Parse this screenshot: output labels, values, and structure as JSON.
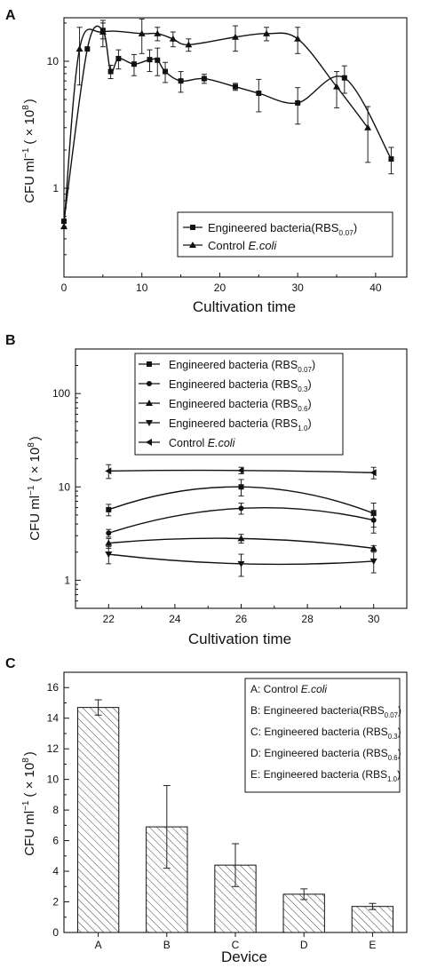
{
  "panels": [
    {
      "id": "A",
      "panel_label": "A",
      "xlabel": "Cultivation time",
      "ylabel_main": "CFU ml",
      "ylabel_sup": "−1",
      "ylabel_paren": "( × 10",
      "ylabel_exp": "8",
      "ylabel_close": ")",
      "legend": [
        {
          "marker": "square",
          "text": "Engineered bacteria(RBS",
          "sub": "0.07",
          "tail": ")",
          "italic": false
        },
        {
          "marker": "triangle-up",
          "text": "Control ",
          "italic_text": "E.coli",
          "sub": "",
          "tail": "",
          "italic": true
        }
      ]
    },
    {
      "id": "B",
      "panel_label": "B",
      "xlabel": "Cultivation time",
      "ylabel_main": "CFU ml",
      "ylabel_sup": "−1",
      "ylabel_paren": "( × 10",
      "ylabel_exp": "8",
      "ylabel_close": ")",
      "legend": [
        {
          "marker": "square",
          "text": "Engineered bacteria (RBS",
          "sub": "0.07",
          "tail": ")",
          "italic": false
        },
        {
          "marker": "circle",
          "text": "Engineered bacteria (RBS",
          "sub": "0.3",
          "tail": ")",
          "italic": false
        },
        {
          "marker": "triangle-up",
          "text": "Engineered bacteria (RBS",
          "sub": "0.6",
          "tail": ")",
          "italic": false
        },
        {
          "marker": "triangle-down",
          "text": "Engineered bacteria (RBS",
          "sub": "1.0",
          "tail": ")",
          "italic": false
        },
        {
          "marker": "triangle-left",
          "text": "Control ",
          "italic_text": "E.coli",
          "sub": "",
          "tail": "",
          "italic": true
        }
      ]
    },
    {
      "id": "C",
      "panel_label": "C",
      "xlabel": "Device",
      "ylabel_main": "CFU ml",
      "ylabel_sup": "−1",
      "ylabel_paren": "( × 10",
      "ylabel_exp": "8",
      "ylabel_close": ")",
      "legend": [
        {
          "prefix": "A: ",
          "text": "Control ",
          "italic_text": "E.coli",
          "sub": "",
          "tail": "",
          "italic": true
        },
        {
          "prefix": "B: ",
          "text": "Engineered bacteria(RBS",
          "sub": "0.07",
          "tail": ")",
          "italic": false
        },
        {
          "prefix": "C: ",
          "text": "Engineered bacteria (RBS",
          "sub": "0.3",
          "tail": ")",
          "italic": false
        },
        {
          "prefix": "D: ",
          "text": "Engineered bacteria (RBS",
          "sub": "0.6",
          "tail": ")",
          "italic": false
        },
        {
          "prefix": "E: ",
          "text": "Engineered bacteria (RBS",
          "sub": "1.0",
          "tail": ")",
          "italic": false
        }
      ]
    }
  ],
  "chart_data": [
    {
      "type": "line",
      "panel": "A",
      "xlabel": "Cultivation time",
      "ylabel": "CFU ml−1 ( × 10^8)",
      "xlim": [
        0,
        44
      ],
      "ylim": [
        0.2,
        22
      ],
      "yscale": "log",
      "xticks": [
        0,
        10,
        20,
        30,
        40
      ],
      "yticks": [
        1,
        10
      ],
      "legend_position": "bottom-right",
      "series": [
        {
          "name": "Engineered bacteria(RBS0.07)",
          "marker": "square",
          "x": [
            0,
            3,
            5,
            6,
            7,
            9,
            11,
            12,
            13,
            15,
            18,
            22,
            25,
            30,
            36,
            42
          ],
          "y": [
            0.55,
            12.5,
            17.5,
            8.3,
            10.5,
            9.5,
            10.3,
            10.2,
            8.3,
            7.0,
            7.3,
            6.3,
            5.6,
            4.7,
            7.4,
            1.7
          ],
          "err": [
            0,
            0,
            2.5,
            1.0,
            1.8,
            1.8,
            2.0,
            2.5,
            1.5,
            1.3,
            0.6,
            0.4,
            1.6,
            1.5,
            1.8,
            0.4
          ]
        },
        {
          "name": "Control E.coli",
          "marker": "triangle-up",
          "x": [
            0,
            2,
            5,
            10,
            12,
            14,
            16,
            22,
            26,
            30,
            35,
            39
          ],
          "y": [
            0.5,
            12.5,
            17,
            16.5,
            16.5,
            15,
            13.5,
            15.5,
            16.5,
            15,
            6.3,
            3.0
          ],
          "err": [
            0,
            6,
            4,
            5,
            2,
            2,
            1.5,
            3.5,
            2,
            3.5,
            2,
            1.4
          ]
        }
      ]
    },
    {
      "type": "line",
      "panel": "B",
      "xlabel": "Cultivation time",
      "ylabel": "CFU ml−1 ( × 10^8)",
      "xlim": [
        21,
        31
      ],
      "ylim": [
        0.5,
        300
      ],
      "yscale": "log",
      "xticks": [
        22,
        24,
        26,
        28,
        30
      ],
      "yticks": [
        1,
        10,
        100
      ],
      "legend_position": "top-center",
      "series": [
        {
          "name": "Engineered bacteria (RBS0.07)",
          "marker": "square",
          "x": [
            22,
            26,
            30
          ],
          "y": [
            5.7,
            10.0,
            5.2
          ],
          "err": [
            0.8,
            2.0,
            1.5
          ]
        },
        {
          "name": "Engineered bacteria (RBS0.3)",
          "marker": "circle",
          "x": [
            22,
            26,
            30
          ],
          "y": [
            3.2,
            5.9,
            4.4
          ],
          "err": [
            0.3,
            0.8,
            1.2
          ]
        },
        {
          "name": "Engineered bacteria (RBS0.6)",
          "marker": "triangle-up",
          "x": [
            22,
            26,
            30
          ],
          "y": [
            2.5,
            2.8,
            2.2
          ],
          "err": [
            0.3,
            0.3,
            0.15
          ]
        },
        {
          "name": "Engineered bacteria (RBS1.0)",
          "marker": "triangle-down",
          "x": [
            22,
            26,
            30
          ],
          "y": [
            1.9,
            1.5,
            1.6
          ],
          "err": [
            0.4,
            0.4,
            0.4
          ]
        },
        {
          "name": "Control E.coli",
          "marker": "triangle-left",
          "x": [
            22,
            26,
            30
          ],
          "y": [
            14.8,
            15.0,
            14.2
          ],
          "err": [
            2.5,
            1.2,
            2.0
          ]
        }
      ]
    },
    {
      "type": "bar",
      "panel": "C",
      "xlabel": "Device",
      "ylabel": "CFU ml−1 ( × 10^8)",
      "categories": [
        "A",
        "B",
        "C",
        "D",
        "E"
      ],
      "values": [
        14.7,
        6.9,
        4.4,
        2.5,
        1.7
      ],
      "err": [
        0.5,
        2.7,
        1.4,
        0.35,
        0.2
      ],
      "ylim": [
        0,
        17
      ],
      "yticks": [
        0,
        2,
        4,
        6,
        8,
        10,
        12,
        14,
        16
      ],
      "legend_position": "top-right"
    }
  ]
}
